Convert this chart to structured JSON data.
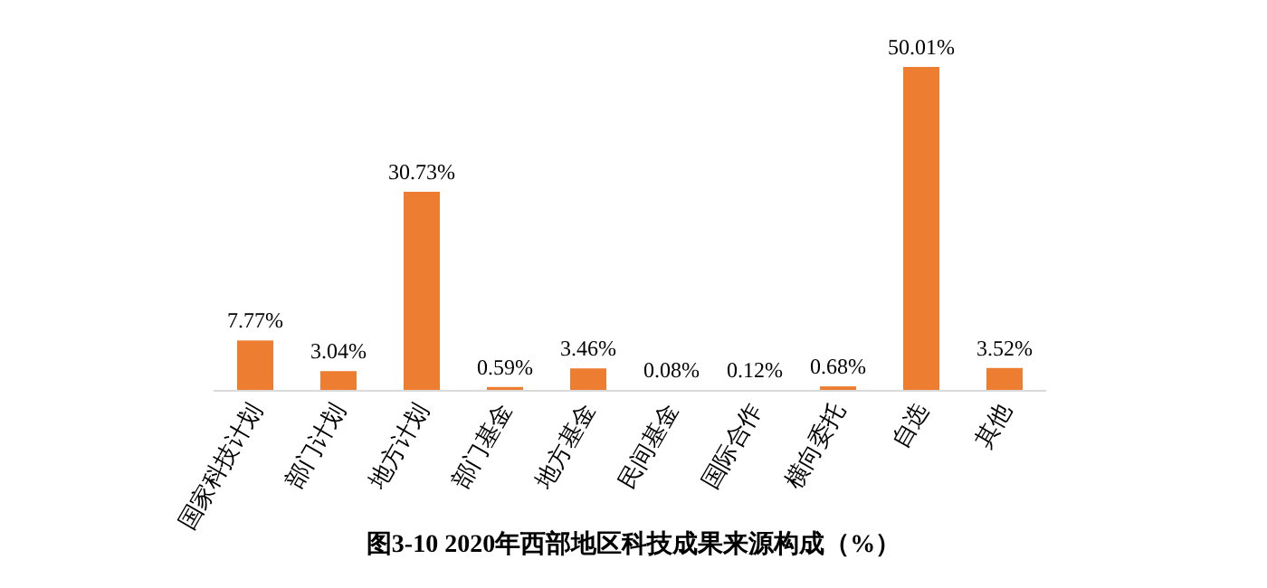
{
  "chart_data": {
    "type": "bar",
    "title": "图3-10  2020年西部地区科技成果来源构成（%）",
    "categories": [
      "国家科技计划",
      "部门计划",
      "地方计划",
      "部门基金",
      "地方基金",
      "民间基金",
      "国际合作",
      "横向委托",
      "自选",
      "其他"
    ],
    "values": [
      7.77,
      3.04,
      30.73,
      0.59,
      3.46,
      0.08,
      0.12,
      0.68,
      50.01,
      3.52
    ],
    "value_labels": [
      "7.77%",
      "3.04%",
      "30.73%",
      "0.59%",
      "3.46%",
      "0.08%",
      "0.12%",
      "0.68%",
      "50.01%",
      "3.52%"
    ],
    "color": "#ed7d31"
  }
}
